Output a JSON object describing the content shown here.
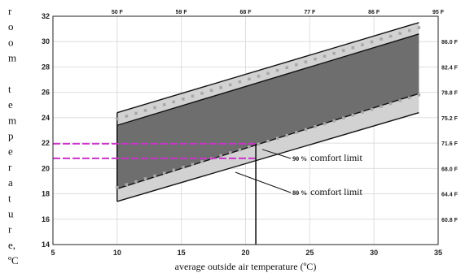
{
  "chart_data": {
    "type": "area",
    "xlabel": "average outside air temperature  (ºC)",
    "ylabel_chars": [
      "r",
      "o",
      "o",
      "m",
      "",
      "t",
      "e",
      "m",
      "p",
      "e",
      "r",
      "a",
      "t",
      "u",
      "r",
      "e,",
      "ºC"
    ],
    "xlim": [
      5,
      35
    ],
    "ylim": [
      14,
      32
    ],
    "x_ticks": [
      "5",
      "10",
      "15",
      "20",
      "25",
      "30",
      "35"
    ],
    "y_ticks": [
      "14",
      "16",
      "18",
      "20",
      "22",
      "24",
      "26",
      "28",
      "30",
      "32"
    ],
    "top_axis_ticks": [
      {
        "x": 10,
        "label": "50 F"
      },
      {
        "x": 15,
        "label": "59 F"
      },
      {
        "x": 20,
        "label": "68 F"
      },
      {
        "x": 25,
        "label": "77 F"
      },
      {
        "x": 30,
        "label": "86 F"
      },
      {
        "x": 35,
        "label": "95 F"
      }
    ],
    "right_axis_ticks": [
      {
        "y": 30.0,
        "label": "86.0 F"
      },
      {
        "y": 28.0,
        "label": "82.4 F"
      },
      {
        "y": 26.0,
        "label": "78.8 F"
      },
      {
        "y": 24.0,
        "label": "75.2 F"
      },
      {
        "y": 22.0,
        "label": "71.6 F"
      },
      {
        "y": 20.0,
        "label": "68.0 F"
      },
      {
        "y": 18.0,
        "label": "64.4 F"
      },
      {
        "y": 16.0,
        "label": "60.8 F"
      }
    ],
    "bands": [
      {
        "name": "80 % comfort limit",
        "x": [
          10,
          33.5
        ],
        "upper": [
          24.4,
          31.5
        ],
        "lower": [
          17.4,
          24.4
        ],
        "color": "#d2d2d2"
      },
      {
        "name": "90 % comfort limit",
        "x": [
          10,
          33.5
        ],
        "upper": [
          23.4,
          30.6
        ],
        "lower": [
          18.4,
          25.9
        ],
        "color": "#6e6e6e"
      }
    ],
    "dotted_lines": [
      {
        "x": [
          10,
          33.5
        ],
        "y": [
          23.9,
          31.1
        ]
      },
      {
        "x": [
          10,
          33.5
        ],
        "y": [
          18.5,
          25.8
        ]
      }
    ],
    "example": {
      "x": 20.8,
      "y90": 21.95,
      "y80": 20.8,
      "color": "#cc33cc"
    },
    "annotations": [
      {
        "text_small": "90 %",
        "text_big": "comfort limit",
        "point": [
          21.3,
          21.5
        ],
        "label_at": [
          24.8,
          20.6
        ]
      },
      {
        "text_small": "80 %",
        "text_big": "comfort limit",
        "point": [
          19.2,
          19.7
        ],
        "label_at": [
          24.8,
          17.9
        ]
      }
    ],
    "grid": true
  }
}
